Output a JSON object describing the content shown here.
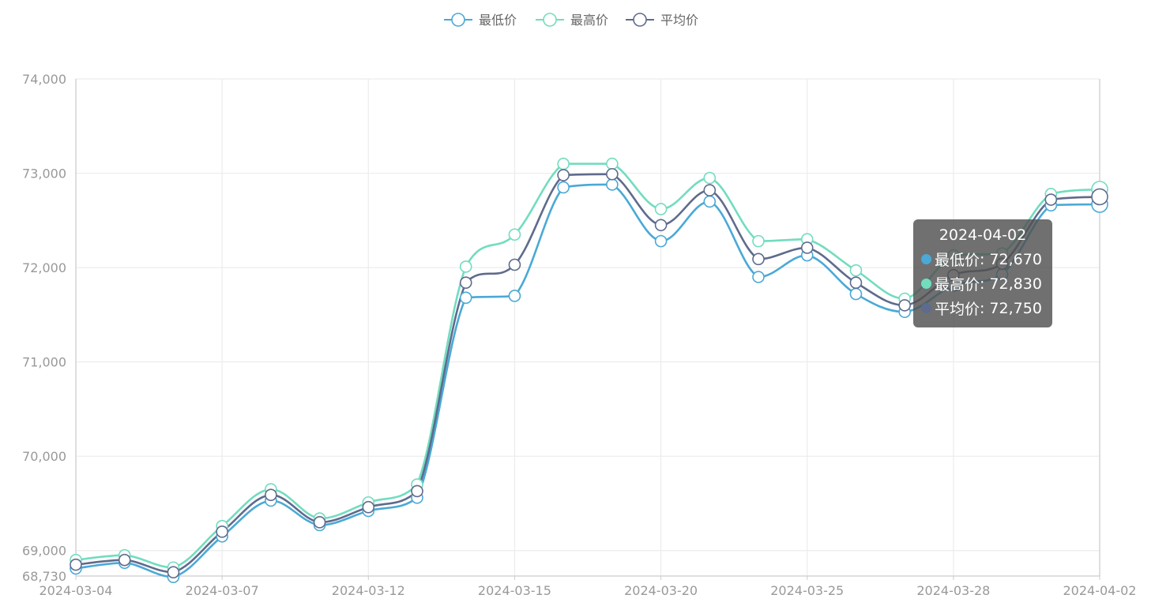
{
  "colors": {
    "min": "#4aa9d6",
    "max": "#72dcbf",
    "avg": "#5f6b8c",
    "grid": "#ececec",
    "axis": "#cccccc",
    "tooltip_bg": "#555555"
  },
  "legend": [
    {
      "name": "最低价",
      "color": "#4aa9d6",
      "icon": "circle-line-icon"
    },
    {
      "name": "最高价",
      "color": "#72dcbf",
      "icon": "circle-line-icon"
    },
    {
      "name": "平均价",
      "color": "#5f6b8c",
      "icon": "circle-line-icon"
    }
  ],
  "tooltip": {
    "title": "2024-04-02",
    "rows": [
      {
        "name": "最低价",
        "value": "72,670",
        "color": "#4aa9d6"
      },
      {
        "name": "最高价",
        "value": "72,830",
        "color": "#72dcbf"
      },
      {
        "name": "平均价",
        "value": "72,750",
        "color": "#5f6b8c"
      }
    ]
  },
  "chart_data": {
    "type": "line",
    "title": "",
    "xlabel": "",
    "ylabel": "",
    "smooth": true,
    "grid": true,
    "legend_position": "top-center",
    "ylim": [
      68730,
      74000
    ],
    "yticks": [
      {
        "value": 74000,
        "label": "74,000"
      },
      {
        "value": 73000,
        "label": "73,000"
      },
      {
        "value": 72000,
        "label": "72,000"
      },
      {
        "value": 71000,
        "label": "71,000"
      },
      {
        "value": 70000,
        "label": "70,000"
      },
      {
        "value": 69000,
        "label": "69,000"
      },
      {
        "value": 68730,
        "label": "68,730"
      }
    ],
    "x": [
      "2024-03-04",
      "2024-03-05",
      "2024-03-06",
      "2024-03-07",
      "2024-03-08",
      "2024-03-11",
      "2024-03-12",
      "2024-03-13",
      "2024-03-14",
      "2024-03-15",
      "2024-03-18",
      "2024-03-19",
      "2024-03-20",
      "2024-03-21",
      "2024-03-22",
      "2024-03-25",
      "2024-03-26",
      "2024-03-27",
      "2024-03-28",
      "2024-03-29",
      "2024-04-01",
      "2024-04-02"
    ],
    "x_tick_labels": [
      {
        "index": 0,
        "label": "2024-03-04"
      },
      {
        "index": 3,
        "label": "2024-03-07"
      },
      {
        "index": 6,
        "label": "2024-03-12"
      },
      {
        "index": 9,
        "label": "2024-03-15"
      },
      {
        "index": 12,
        "label": "2024-03-20"
      },
      {
        "index": 15,
        "label": "2024-03-25"
      },
      {
        "index": 18,
        "label": "2024-03-28"
      },
      {
        "index": 21,
        "label": "2024-04-02"
      }
    ],
    "series": [
      {
        "name": "最低价",
        "values": [
          68810,
          68870,
          68720,
          69150,
          69530,
          69270,
          69420,
          69560,
          71680,
          71700,
          72850,
          72880,
          72280,
          72700,
          71900,
          72130,
          71720,
          71530,
          71810,
          71930,
          72660,
          72670
        ]
      },
      {
        "name": "最高价",
        "values": [
          68900,
          68950,
          68820,
          69260,
          69650,
          69340,
          69510,
          69700,
          72010,
          72350,
          73100,
          73100,
          72620,
          72950,
          72280,
          72300,
          71970,
          71670,
          72130,
          72150,
          72780,
          72830
        ]
      },
      {
        "name": "平均价",
        "values": [
          68850,
          68900,
          68770,
          69200,
          69590,
          69300,
          69460,
          69630,
          71840,
          72030,
          72980,
          72990,
          72450,
          72820,
          72090,
          72210,
          71840,
          71600,
          71920,
          72040,
          72720,
          72750
        ]
      }
    ],
    "highlighted_index": 21
  }
}
